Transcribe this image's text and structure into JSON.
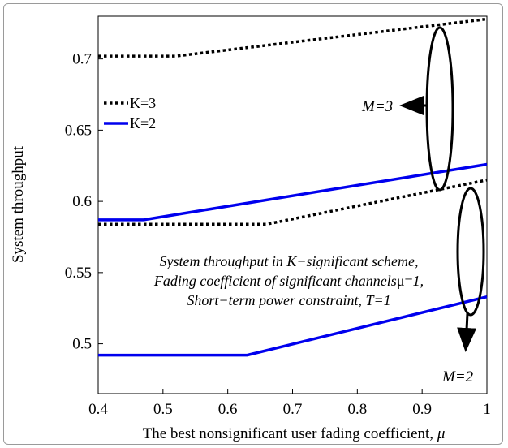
{
  "chart_data": {
    "type": "line",
    "xlabel": "The best nonsignificant user fading coefficient, ",
    "xlabel_symbol": "μ",
    "ylabel": "System throughput",
    "xlim": [
      0.4,
      1.0
    ],
    "ylim": [
      0.465,
      0.73
    ],
    "x_ticks": [
      0.4,
      0.5,
      0.6,
      0.7,
      0.8,
      0.9,
      1.0
    ],
    "x_tick_labels": [
      "0.4",
      "0.5",
      "0.6",
      "0.7",
      "0.8",
      "0.9",
      "1"
    ],
    "y_ticks": [
      0.5,
      0.55,
      0.6,
      0.65,
      0.7
    ],
    "y_tick_labels": [
      "0.5",
      "0.55",
      "0.6",
      "0.65",
      "0.7"
    ],
    "grid": false,
    "legend": {
      "placement": "top-left",
      "entries": [
        {
          "label": "K=3",
          "style": "dotted",
          "color": "#000000"
        },
        {
          "label": "K=2",
          "style": "solid",
          "color": "#0000ee"
        }
      ]
    },
    "series": [
      {
        "group": "M=3",
        "legend": "K=3",
        "style": "dotted",
        "color": "#000000",
        "x": [
          0.4,
          0.52,
          1.0
        ],
        "y": [
          0.702,
          0.702,
          0.728
        ]
      },
      {
        "group": "M=3",
        "legend": "K=2",
        "style": "solid",
        "color": "#0000ee",
        "x": [
          0.4,
          0.47,
          1.0
        ],
        "y": [
          0.587,
          0.587,
          0.626
        ]
      },
      {
        "group": "M=2",
        "legend": "K=3",
        "style": "dotted",
        "color": "#000000",
        "x": [
          0.4,
          0.66,
          1.0
        ],
        "y": [
          0.584,
          0.584,
          0.615
        ]
      },
      {
        "group": "M=2",
        "legend": "K=2",
        "style": "solid",
        "color": "#0000ee",
        "x": [
          0.4,
          0.63,
          1.0
        ],
        "y": [
          0.492,
          0.492,
          0.533
        ]
      }
    ],
    "annotations": {
      "note_lines": [
        "System throughput in K−significant scheme,",
        "Fading coefficient of significant channels",
        "Short−term power constraint, T=1"
      ],
      "note_line2_symbol": "μ=",
      "note_line2_suffix": "1,",
      "group_labels": [
        {
          "text": "M=3",
          "ellipse_center": [
            0.93,
            0.671
          ],
          "arrow": "left"
        },
        {
          "text": "M=2",
          "ellipse_center": [
            0.975,
            0.571
          ],
          "arrow": "down"
        }
      ]
    }
  }
}
